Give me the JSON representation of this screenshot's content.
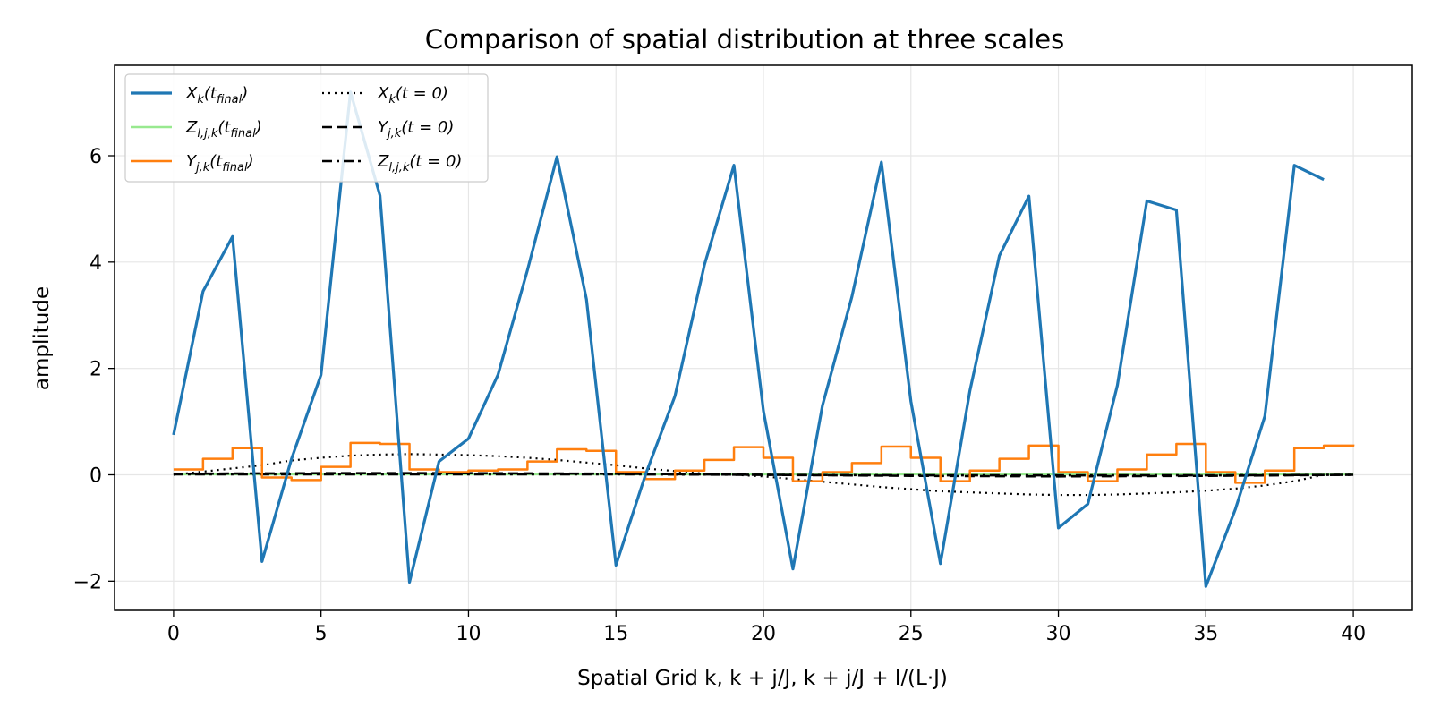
{
  "chart_data": {
    "type": "line",
    "title": "Comparison of spatial distribution at three scales",
    "xlabel": "Spatial Grid k,  k + j/J,  k + j/J + l/(L·J)",
    "ylabel": "amplitude",
    "xlim": [
      -2,
      42
    ],
    "ylim": [
      -2.55,
      7.7
    ],
    "xticks": [
      0,
      5,
      10,
      15,
      20,
      25,
      30,
      35,
      40
    ],
    "xtick_labels": [
      "0",
      "5",
      "10",
      "15",
      "20",
      "25",
      "30",
      "35",
      "40"
    ],
    "yticks": [
      -2,
      0,
      2,
      4,
      6
    ],
    "ytick_labels": [
      "−2",
      "0",
      "2",
      "4",
      "6"
    ],
    "grid": true,
    "legend_position": "top-left",
    "legend_columns": 2,
    "series": [
      {
        "name": "X_k(t_final)",
        "label_main": "X",
        "label_sub": "k",
        "label_arg": "(t",
        "label_argsub": "final",
        "label_end": ")",
        "color": "#1f77b4",
        "style": "solid",
        "width": 3.2,
        "x": [
          0,
          1,
          2,
          3,
          4,
          5,
          6,
          7,
          8,
          9,
          10,
          11,
          12,
          13,
          14,
          15,
          16,
          17,
          18,
          19,
          20,
          21,
          22,
          23,
          24,
          25,
          26,
          27,
          28,
          29,
          30,
          31,
          32,
          33,
          34,
          35,
          36,
          37,
          38,
          39
        ],
        "y": [
          0.75,
          3.45,
          4.48,
          -1.63,
          0.3,
          1.88,
          7.2,
          5.25,
          -2.02,
          0.25,
          0.68,
          1.88,
          3.85,
          5.98,
          3.3,
          -1.7,
          0.0,
          1.48,
          3.95,
          5.82,
          1.2,
          -1.77,
          1.3,
          3.35,
          5.88,
          1.38,
          -1.67,
          1.58,
          4.12,
          5.24,
          -1.0,
          -0.55,
          1.68,
          5.15,
          4.98,
          -2.1,
          -0.65,
          1.1,
          5.82,
          5.55
        ]
      },
      {
        "name": "Z_l,j,k(t_final)",
        "label_main": "Z",
        "label_sub": "l,j,k",
        "label_arg": "(t",
        "label_argsub": "final",
        "label_end": ")",
        "color": "#98e98f",
        "style": "solid",
        "width": 2.5,
        "x": [
          0,
          40
        ],
        "y": [
          0.01,
          0.01
        ]
      },
      {
        "name": "Y_j,k(t_final)",
        "label_main": "Y",
        "label_sub": "j,k",
        "label_arg": "(t",
        "label_argsub": "final",
        "label_end": ")",
        "color": "#ff7f0e",
        "style": "step",
        "width": 2.5,
        "x": [
          0,
          1,
          2,
          3,
          4,
          5,
          6,
          7,
          8,
          9,
          10,
          11,
          12,
          13,
          14,
          15,
          16,
          17,
          18,
          19,
          20,
          21,
          22,
          23,
          24,
          25,
          26,
          27,
          28,
          29,
          30,
          31,
          32,
          33,
          34,
          35,
          36,
          37,
          38,
          39,
          40
        ],
        "y": [
          0.1,
          0.3,
          0.5,
          -0.05,
          -0.1,
          0.15,
          0.6,
          0.58,
          0.1,
          0.05,
          0.08,
          0.1,
          0.25,
          0.48,
          0.45,
          0.05,
          -0.08,
          0.08,
          0.28,
          0.52,
          0.32,
          -0.12,
          0.05,
          0.22,
          0.53,
          0.32,
          -0.12,
          0.08,
          0.3,
          0.55,
          0.05,
          -0.12,
          0.1,
          0.38,
          0.58,
          0.05,
          -0.15,
          0.08,
          0.5,
          0.55,
          0.57
        ]
      },
      {
        "name": "X_k(t=0)",
        "label_main": "X",
        "label_sub": "k",
        "label_arg": "(t = 0)",
        "label_argsub": "",
        "label_end": "",
        "color": "#000000",
        "style": "dotted",
        "width": 2.2,
        "x": [
          0,
          1,
          2,
          3,
          4,
          5,
          6,
          7,
          8,
          9,
          10,
          11,
          12,
          13,
          14,
          15,
          16,
          17,
          18,
          19,
          20,
          21,
          22,
          23,
          24,
          25,
          26,
          27,
          28,
          29,
          30,
          31,
          32,
          33,
          34,
          35,
          36,
          37,
          38,
          39
        ],
        "y": [
          0.0,
          0.06,
          0.12,
          0.18,
          0.27,
          0.32,
          0.36,
          0.38,
          0.39,
          0.38,
          0.37,
          0.35,
          0.32,
          0.28,
          0.23,
          0.18,
          0.12,
          0.07,
          0.02,
          0.0,
          -0.03,
          -0.08,
          -0.13,
          -0.18,
          -0.23,
          -0.27,
          -0.31,
          -0.33,
          -0.35,
          -0.37,
          -0.38,
          -0.38,
          -0.37,
          -0.35,
          -0.33,
          -0.3,
          -0.26,
          -0.2,
          -0.12,
          0.0
        ]
      },
      {
        "name": "Y_j,k(t=0)",
        "label_main": "Y",
        "label_sub": "j,k",
        "label_arg": "(t = 0)",
        "label_argsub": "",
        "label_end": "",
        "color": "#000000",
        "style": "dashed",
        "width": 2.6,
        "x": [
          0,
          5,
          10,
          15,
          20,
          25,
          30,
          35,
          40
        ],
        "y": [
          0.02,
          0.03,
          0.03,
          0.02,
          0.0,
          -0.02,
          -0.03,
          -0.02,
          0.0
        ]
      },
      {
        "name": "Z_l,j,k(t=0)",
        "label_main": "Z",
        "label_sub": "l,j,k",
        "label_arg": "(t = 0)",
        "label_argsub": "",
        "label_end": "",
        "color": "#000000",
        "style": "dashdot",
        "width": 2.6,
        "x": [
          0,
          5,
          10,
          15,
          20,
          25,
          30,
          35,
          40
        ],
        "y": [
          0.01,
          0.01,
          0.01,
          0.01,
          0.0,
          -0.01,
          -0.01,
          -0.01,
          0.0
        ]
      }
    ]
  }
}
